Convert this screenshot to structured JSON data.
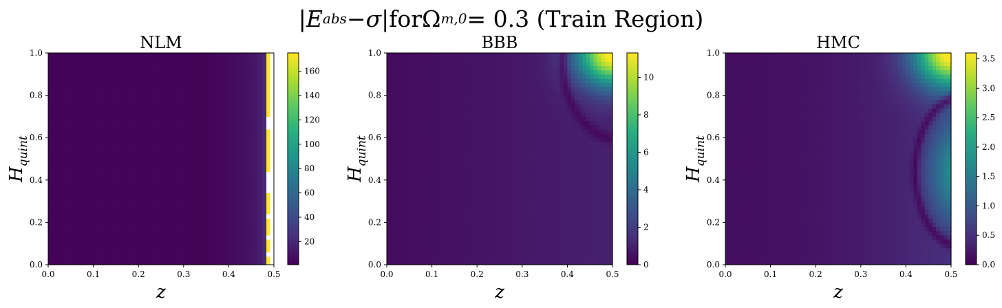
{
  "suptitle": {
    "abs_open": "|",
    "E": "E",
    "E_sub": "abs",
    "minus": " − ",
    "sigma": "σ",
    "abs_close": "|",
    "for_text": " for ",
    "omega": "Ω",
    "omega_sub": "m,0",
    "equals_value": " = 0.3 (Train Region)"
  },
  "chart_data": [
    {
      "type": "heatmap",
      "title": "NLM",
      "xlabel": "z",
      "ylabel": "H_quint",
      "ylabel_base": "H",
      "ylabel_sub": "quint",
      "xlim": [
        0.0,
        0.5
      ],
      "ylim": [
        0.0,
        1.0
      ],
      "xticks": [
        "0.0",
        "0.1",
        "0.2",
        "0.3",
        "0.4",
        "0.5"
      ],
      "yticks": [
        "0.0",
        "0.2",
        "0.4",
        "0.6",
        "0.8",
        "1.0"
      ],
      "colorbar": {
        "min": 1,
        "max": 175,
        "ticks": [
          20,
          40,
          60,
          80,
          100,
          120,
          140,
          160
        ]
      },
      "colormap": "viridis",
      "field": "error rises sharply near z≈0.48–0.5; ~1 for z<0.35, saturated/blank streaks at right edge"
    },
    {
      "type": "heatmap",
      "title": "BBB",
      "xlabel": "z",
      "ylabel": "H_quint",
      "ylabel_base": "H",
      "ylabel_sub": "quint",
      "xlim": [
        0.0,
        0.5
      ],
      "ylim": [
        0.0,
        1.0
      ],
      "xticks": [
        "0.0",
        "0.1",
        "0.2",
        "0.3",
        "0.4",
        "0.5"
      ],
      "yticks": [
        "0.0",
        "0.2",
        "0.4",
        "0.6",
        "0.8",
        "1.0"
      ],
      "colorbar": {
        "min": 0,
        "max": 11.3,
        "ticks": [
          0,
          2,
          4,
          6,
          8,
          10
        ]
      },
      "colormap": "viridis",
      "field": "max ~11 at top-right corner (z=0.5, H=1.0); dark arc near H≈0.6, z 0.38–0.5"
    },
    {
      "type": "heatmap",
      "title": "HMC",
      "xlabel": "z",
      "ylabel": "H_quint",
      "ylabel_base": "H",
      "ylabel_sub": "quint",
      "xlim": [
        0.0,
        0.5
      ],
      "ylim": [
        0.0,
        1.0
      ],
      "xticks": [
        "0.0",
        "0.1",
        "0.2",
        "0.3",
        "0.4",
        "0.5"
      ],
      "yticks": [
        "0.0",
        "0.2",
        "0.4",
        "0.6",
        "0.8",
        "1.0"
      ],
      "colorbar": {
        "min": 0.0,
        "max": 3.6,
        "ticks": [
          "0.0",
          "0.5",
          "1.0",
          "1.5",
          "2.0",
          "2.5",
          "3.0",
          "3.5"
        ]
      },
      "colormap": "viridis",
      "field": "max ~3.5 at top-right; dark arc from (0.5,0.1) through (0.42,0.4) to (0.5,0.78); right edge bright ~2"
    }
  ]
}
